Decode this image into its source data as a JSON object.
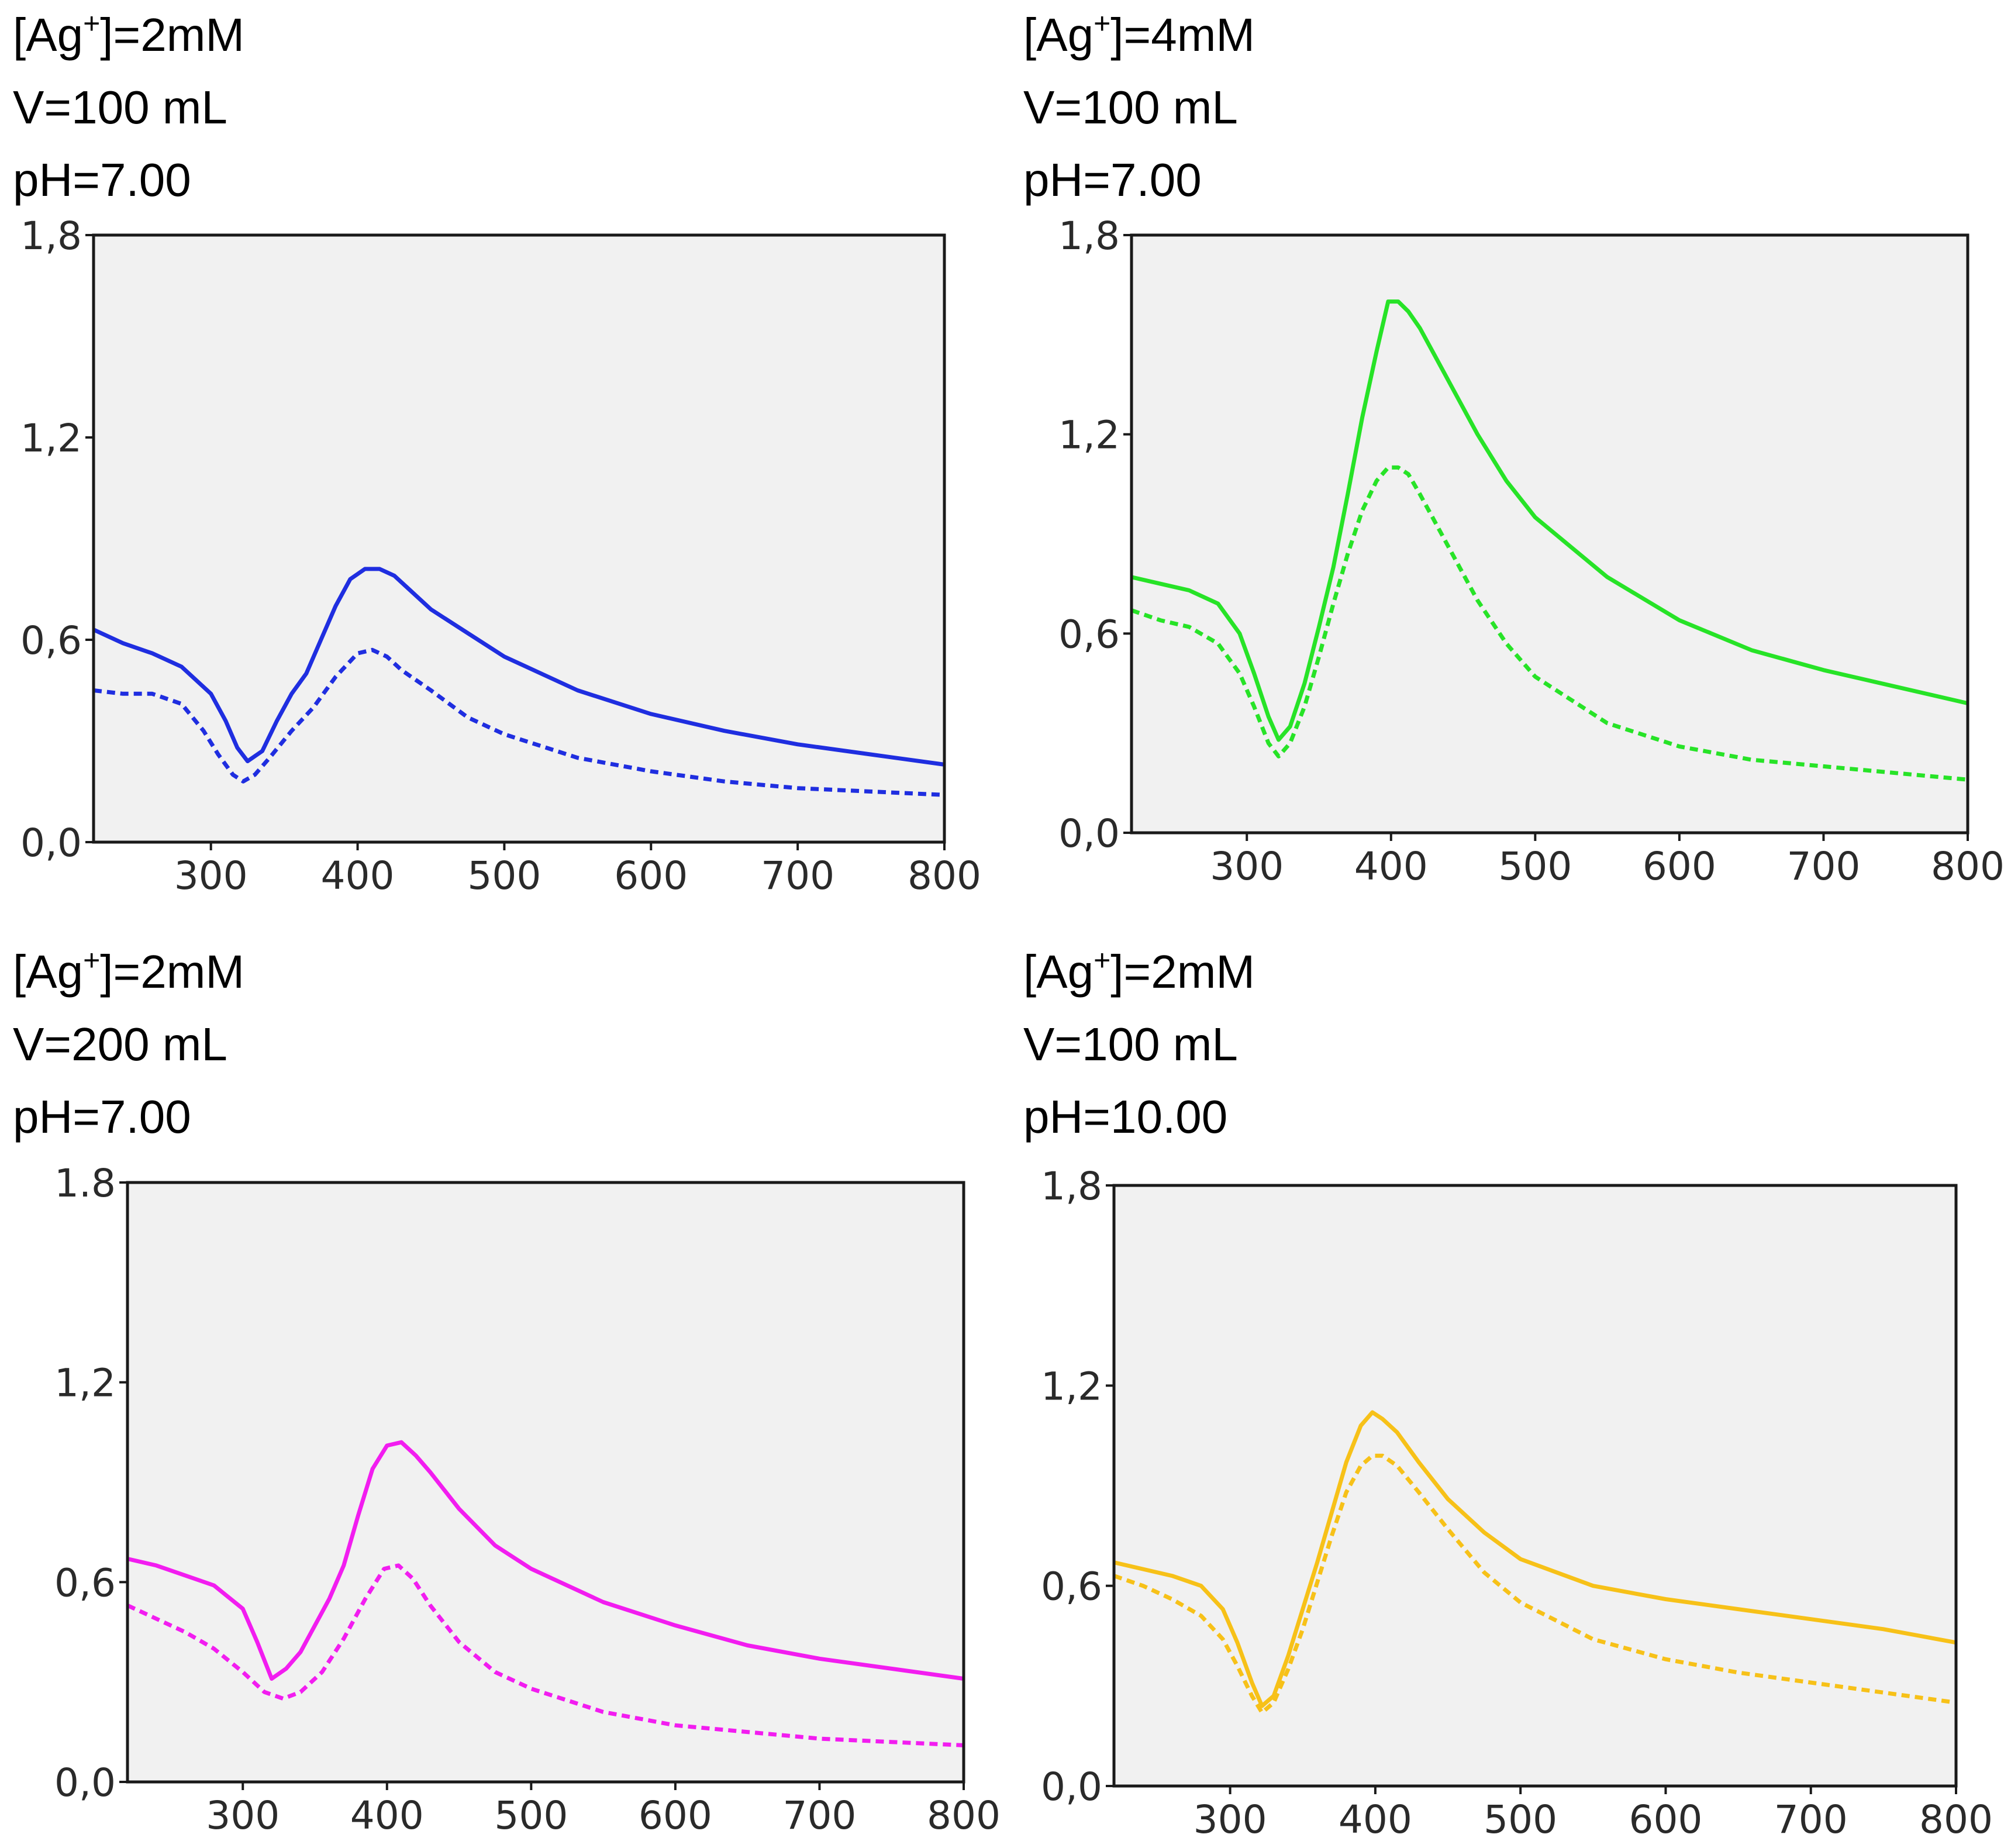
{
  "chart_data": [
    {
      "type": "line",
      "id": "p1",
      "conditions": {
        "ag_prefix": "[Ag",
        "ag_sup": "+",
        "ag_suffix": "]=2mM",
        "volume": "V=100 mL",
        "ph": "pH=7.00"
      },
      "color": "#1f2ee0",
      "x_ticks": [
        "300",
        "400",
        "500",
        "600",
        "700",
        "800"
      ],
      "y_ticks": [
        "0,0",
        "0,6",
        "1,2",
        "1,8"
      ],
      "xlim": [
        220,
        800
      ],
      "ylim": [
        0,
        1.8
      ],
      "grid": false,
      "series": [
        {
          "name": "solid",
          "style": "solid",
          "x": [
            220,
            240,
            260,
            280,
            300,
            310,
            318,
            325,
            335,
            345,
            355,
            365,
            375,
            385,
            395,
            405,
            415,
            425,
            435,
            450,
            475,
            500,
            550,
            600,
            650,
            700,
            750,
            800
          ],
          "y": [
            0.63,
            0.59,
            0.56,
            0.52,
            0.44,
            0.36,
            0.28,
            0.24,
            0.27,
            0.36,
            0.44,
            0.5,
            0.6,
            0.7,
            0.78,
            0.81,
            0.81,
            0.79,
            0.75,
            0.69,
            0.62,
            0.55,
            0.45,
            0.38,
            0.33,
            0.29,
            0.26,
            0.23
          ]
        },
        {
          "name": "dashed",
          "style": "dashed",
          "x": [
            220,
            240,
            260,
            280,
            295,
            305,
            315,
            322,
            330,
            340,
            355,
            370,
            385,
            400,
            410,
            420,
            430,
            450,
            475,
            500,
            550,
            600,
            650,
            700,
            750,
            800
          ],
          "y": [
            0.45,
            0.44,
            0.44,
            0.41,
            0.33,
            0.26,
            0.2,
            0.18,
            0.2,
            0.25,
            0.33,
            0.4,
            0.49,
            0.56,
            0.57,
            0.55,
            0.51,
            0.45,
            0.37,
            0.32,
            0.25,
            0.21,
            0.18,
            0.16,
            0.15,
            0.14
          ]
        }
      ]
    },
    {
      "type": "line",
      "id": "p2",
      "conditions": {
        "ag_prefix": "[Ag",
        "ag_sup": "+",
        "ag_suffix": "]=4mM",
        "volume": "V=100 mL",
        "ph": "pH=7.00"
      },
      "color": "#27e327",
      "x_ticks": [
        "300",
        "400",
        "500",
        "600",
        "700",
        "800"
      ],
      "y_ticks": [
        "0,0",
        "0,6",
        "1,2",
        "1,8"
      ],
      "xlim": [
        220,
        800
      ],
      "ylim": [
        0,
        1.8
      ],
      "grid": false,
      "series": [
        {
          "name": "solid",
          "style": "solid",
          "x": [
            220,
            240,
            260,
            280,
            295,
            305,
            315,
            322,
            330,
            340,
            350,
            360,
            370,
            380,
            390,
            398,
            405,
            412,
            420,
            430,
            445,
            460,
            480,
            500,
            550,
            600,
            650,
            700,
            750,
            800
          ],
          "y": [
            0.77,
            0.75,
            0.73,
            0.69,
            0.6,
            0.48,
            0.35,
            0.28,
            0.32,
            0.45,
            0.62,
            0.8,
            1.02,
            1.25,
            1.45,
            1.6,
            1.6,
            1.57,
            1.52,
            1.44,
            1.32,
            1.2,
            1.06,
            0.95,
            0.77,
            0.64,
            0.55,
            0.49,
            0.44,
            0.39
          ]
        },
        {
          "name": "dashed",
          "style": "dashed",
          "x": [
            220,
            240,
            260,
            280,
            295,
            305,
            315,
            322,
            330,
            340,
            350,
            360,
            370,
            380,
            390,
            398,
            405,
            412,
            420,
            430,
            445,
            460,
            480,
            500,
            550,
            600,
            650,
            700,
            750,
            800
          ],
          "y": [
            0.67,
            0.64,
            0.62,
            0.57,
            0.48,
            0.38,
            0.27,
            0.23,
            0.27,
            0.38,
            0.53,
            0.69,
            0.84,
            0.97,
            1.06,
            1.1,
            1.1,
            1.08,
            1.02,
            0.94,
            0.82,
            0.7,
            0.57,
            0.47,
            0.33,
            0.26,
            0.22,
            0.2,
            0.18,
            0.16
          ]
        }
      ]
    },
    {
      "type": "line",
      "id": "p3",
      "conditions": {
        "ag_prefix": "[Ag",
        "ag_sup": "+",
        "ag_suffix": "]=2mM",
        "volume": "V=200 mL",
        "ph": "pH=7.00"
      },
      "color": "#f21df0",
      "x_ticks": [
        "300",
        "400",
        "500",
        "600",
        "700",
        "800"
      ],
      "y_ticks": [
        "0,0",
        "0,6",
        "1,2",
        "1.8"
      ],
      "xlim": [
        220,
        800
      ],
      "ylim": [
        0,
        1.8
      ],
      "grid": false,
      "series": [
        {
          "name": "solid",
          "style": "solid",
          "x": [
            220,
            240,
            260,
            280,
            300,
            310,
            320,
            330,
            340,
            350,
            360,
            370,
            380,
            390,
            400,
            410,
            420,
            430,
            450,
            475,
            500,
            550,
            600,
            650,
            700,
            750,
            800
          ],
          "y": [
            0.67,
            0.65,
            0.62,
            0.59,
            0.52,
            0.42,
            0.31,
            0.34,
            0.39,
            0.47,
            0.55,
            0.65,
            0.8,
            0.94,
            1.01,
            1.02,
            0.98,
            0.93,
            0.82,
            0.71,
            0.64,
            0.54,
            0.47,
            0.41,
            0.37,
            0.34,
            0.31
          ]
        },
        {
          "name": "dashed",
          "style": "dashed",
          "x": [
            220,
            240,
            260,
            280,
            300,
            315,
            328,
            340,
            355,
            370,
            385,
            398,
            408,
            418,
            430,
            450,
            475,
            500,
            550,
            600,
            650,
            700,
            750,
            800
          ],
          "y": [
            0.53,
            0.49,
            0.45,
            0.4,
            0.33,
            0.27,
            0.25,
            0.27,
            0.33,
            0.43,
            0.55,
            0.64,
            0.65,
            0.61,
            0.53,
            0.42,
            0.33,
            0.28,
            0.21,
            0.17,
            0.15,
            0.13,
            0.12,
            0.11
          ]
        }
      ]
    },
    {
      "type": "line",
      "id": "p4",
      "conditions": {
        "ag_prefix": "[Ag",
        "ag_sup": "+",
        "ag_suffix": "]=2mM",
        "volume": "V=100 mL",
        "ph": "pH=10.00"
      },
      "color": "#f7c118",
      "x_ticks": [
        "300",
        "400",
        "500",
        "600",
        "700",
        "800"
      ],
      "y_ticks": [
        "0,0",
        "0,6",
        "1,2",
        "1,8"
      ],
      "xlim": [
        220,
        800
      ],
      "ylim": [
        0,
        1.8
      ],
      "grid": false,
      "series": [
        {
          "name": "solid",
          "style": "solid",
          "x": [
            220,
            240,
            260,
            280,
            295,
            305,
            315,
            322,
            330,
            340,
            350,
            360,
            370,
            380,
            390,
            398,
            405,
            415,
            430,
            450,
            475,
            500,
            550,
            600,
            650,
            700,
            750,
            800
          ],
          "y": [
            0.67,
            0.65,
            0.63,
            0.6,
            0.53,
            0.43,
            0.31,
            0.24,
            0.27,
            0.39,
            0.53,
            0.67,
            0.82,
            0.97,
            1.08,
            1.12,
            1.1,
            1.06,
            0.97,
            0.86,
            0.76,
            0.68,
            0.6,
            0.56,
            0.53,
            0.5,
            0.47,
            0.43
          ]
        },
        {
          "name": "dashed",
          "style": "dashed",
          "x": [
            220,
            240,
            260,
            280,
            295,
            305,
            315,
            322,
            330,
            340,
            350,
            360,
            370,
            380,
            390,
            398,
            405,
            415,
            430,
            450,
            475,
            500,
            550,
            600,
            650,
            700,
            750,
            800
          ],
          "y": [
            0.63,
            0.6,
            0.56,
            0.51,
            0.44,
            0.36,
            0.27,
            0.22,
            0.25,
            0.35,
            0.47,
            0.61,
            0.75,
            0.88,
            0.96,
            0.99,
            0.99,
            0.96,
            0.88,
            0.77,
            0.64,
            0.55,
            0.44,
            0.38,
            0.34,
            0.31,
            0.28,
            0.25
          ]
        }
      ]
    }
  ]
}
